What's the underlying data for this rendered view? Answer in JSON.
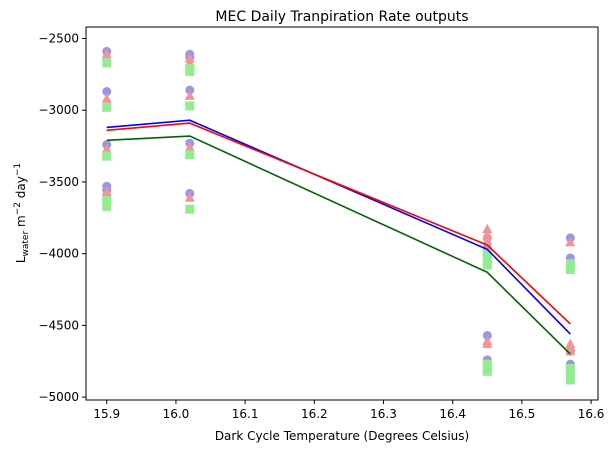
{
  "chart_data": {
    "type": "scatter",
    "title": "MEC Daily Tranpiration Rate outputs",
    "xlabel": "Dark Cycle Temperature (Degrees Celsius)",
    "ylabel_parts": {
      "base": "L",
      "sub": "water",
      "mid": " m",
      "sup1": "−2",
      "tail": " day",
      "sup2": "−1"
    },
    "xlim": [
      15.87,
      16.61
    ],
    "ylim": [
      -5020,
      -2420
    ],
    "x_ticks": [
      15.9,
      16.0,
      16.1,
      16.2,
      16.3,
      16.4,
      16.5,
      16.6
    ],
    "x_tick_labels": [
      "15.9",
      "16.0",
      "16.1",
      "16.2",
      "16.3",
      "16.4",
      "16.5",
      "16.6"
    ],
    "y_ticks": [
      -5000,
      -4500,
      -4000,
      -3500,
      -3000,
      -2500
    ],
    "y_tick_labels": [
      "−5000",
      "−4500",
      "−4000",
      "−3500",
      "−3000",
      "−2500"
    ],
    "grid": false,
    "series": [
      {
        "marker": "circle",
        "color": "#9f94e8",
        "points": [
          [
            15.9,
            -2590
          ],
          [
            15.9,
            -2870
          ],
          [
            15.9,
            -3240
          ],
          [
            15.9,
            -3530
          ],
          [
            15.9,
            -3560
          ],
          [
            16.02,
            -2610
          ],
          [
            16.02,
            -2630
          ],
          [
            16.02,
            -2860
          ],
          [
            16.02,
            -3230
          ],
          [
            16.02,
            -3580
          ],
          [
            16.45,
            -3890
          ],
          [
            16.45,
            -3960
          ],
          [
            16.45,
            -4570
          ],
          [
            16.45,
            -4740
          ],
          [
            16.57,
            -3890
          ],
          [
            16.57,
            -4030
          ],
          [
            16.57,
            -4680
          ],
          [
            16.57,
            -4770
          ]
        ]
      },
      {
        "marker": "triangle",
        "color": "#f59393",
        "points": [
          [
            15.9,
            -2610
          ],
          [
            15.9,
            -2920
          ],
          [
            15.9,
            -3270
          ],
          [
            15.9,
            -3570
          ],
          [
            15.9,
            -3600
          ],
          [
            16.02,
            -2640
          ],
          [
            16.02,
            -2670
          ],
          [
            16.02,
            -2900
          ],
          [
            16.02,
            -3260
          ],
          [
            16.02,
            -3610
          ],
          [
            16.45,
            -3830
          ],
          [
            16.45,
            -3870
          ],
          [
            16.45,
            -3910
          ],
          [
            16.45,
            -3980
          ],
          [
            16.45,
            -4610
          ],
          [
            16.45,
            -4630
          ],
          [
            16.57,
            -3920
          ],
          [
            16.57,
            -4630
          ],
          [
            16.57,
            -4650
          ],
          [
            16.57,
            -4680
          ]
        ]
      },
      {
        "marker": "square",
        "color": "#90ee90",
        "points": [
          [
            15.9,
            -2670
          ],
          [
            15.9,
            -2980
          ],
          [
            15.9,
            -3320
          ],
          [
            15.9,
            -3630
          ],
          [
            15.9,
            -3670
          ],
          [
            16.02,
            -2710
          ],
          [
            16.02,
            -2730
          ],
          [
            16.02,
            -2970
          ],
          [
            16.02,
            -3310
          ],
          [
            16.02,
            -3690
          ],
          [
            16.45,
            -4000
          ],
          [
            16.45,
            -4050
          ],
          [
            16.45,
            -4080
          ],
          [
            16.45,
            -4770
          ],
          [
            16.45,
            -4820
          ],
          [
            16.57,
            -4070
          ],
          [
            16.57,
            -4110
          ],
          [
            16.57,
            -4800
          ],
          [
            16.57,
            -4840
          ],
          [
            16.57,
            -4880
          ]
        ]
      }
    ],
    "lines": [
      {
        "color": "#0000ff",
        "x": [
          15.9,
          16.02,
          16.45,
          16.57
        ],
        "y": [
          -3120,
          -3070,
          -3970,
          -4560
        ]
      },
      {
        "color": "#ff0000",
        "x": [
          15.9,
          16.02,
          16.45,
          16.57
        ],
        "y": [
          -3140,
          -3090,
          -3940,
          -4490
        ]
      },
      {
        "color": "#006400",
        "x": [
          15.9,
          16.02,
          16.45,
          16.57
        ],
        "y": [
          -3210,
          -3180,
          -4130,
          -4700
        ]
      }
    ]
  }
}
